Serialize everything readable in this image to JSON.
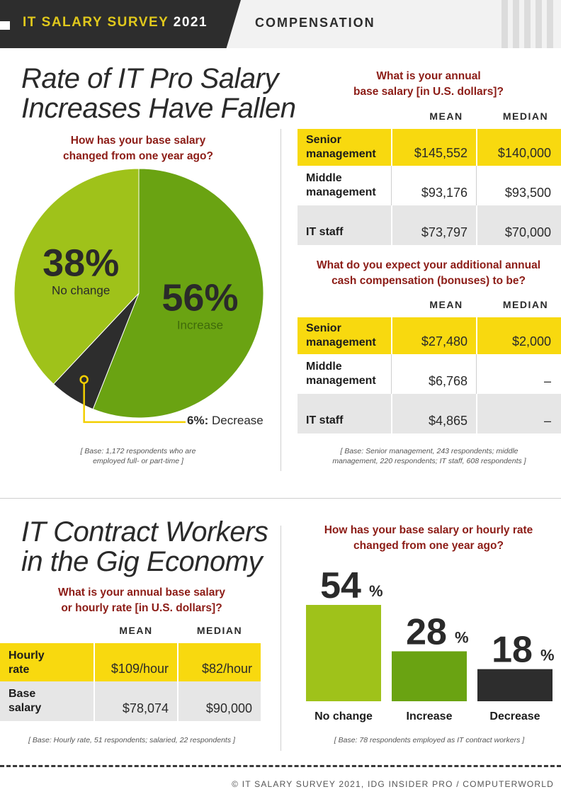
{
  "header": {
    "survey_label": "IT SALARY SURVEY",
    "year": "2021",
    "section": "COMPENSATION"
  },
  "section1": {
    "title_line1": "Rate of IT Pro Salary",
    "title_line2": "Increases Have Fallen",
    "pie": {
      "question_line1": "How has your base salary",
      "question_line2": "changed from one year ago?",
      "note_line1": "[ Base: 1,172 respondents who are",
      "note_line2": "employed full- or part-time ]",
      "decrease_label": "6%:",
      "decrease_text": "Decrease"
    },
    "base_salary": {
      "question_line1": "What is your annual",
      "question_line2": "base salary [in U.S. dollars]?",
      "col_mean": "MEAN",
      "col_median": "MEDIAN",
      "rows": [
        {
          "label_line1": "Senior",
          "label_line2": "management",
          "mean": "$145,552",
          "median": "$140,000"
        },
        {
          "label_line1": "Middle",
          "label_line2": "management",
          "mean": "$93,176",
          "median": "$93,500"
        },
        {
          "label_line1": "IT staff",
          "label_line2": "",
          "mean": "$73,797",
          "median": "$70,000"
        }
      ]
    },
    "bonus": {
      "question_line1": "What do you expect your additional annual",
      "question_line2": "cash compensation (bonuses) to be?",
      "col_mean": "MEAN",
      "col_median": "MEDIAN",
      "rows": [
        {
          "label_line1": "Senior",
          "label_line2": "management",
          "mean": "$27,480",
          "median": "$2,000"
        },
        {
          "label_line1": "Middle",
          "label_line2": "management",
          "mean": "$6,768",
          "median": "–"
        },
        {
          "label_line1": "IT staff",
          "label_line2": "",
          "mean": "$4,865",
          "median": "–"
        }
      ],
      "note_line1": "[ Base: Senior management, 243 respondents; middle",
      "note_line2": "management, 220 respondents; IT staff, 608 respondents ]"
    }
  },
  "section2": {
    "title_line1": "IT Contract Workers",
    "title_line2": "in the Gig Economy",
    "salary": {
      "question_line1": "What is your annual base salary",
      "question_line2": "or hourly rate [in U.S. dollars]?",
      "col_mean": "MEAN",
      "col_median": "MEDIAN",
      "rows": [
        {
          "label_line1": "Hourly",
          "label_line2": "rate",
          "mean": "$109/hour",
          "median": "$82/hour"
        },
        {
          "label_line1": "Base",
          "label_line2": "salary",
          "mean": "$78,074",
          "median": "$90,000"
        }
      ],
      "note": "[ Base: Hourly rate, 51 respondents; salaried, 22 respondents ]"
    },
    "bars": {
      "question_line1": "How has your base salary or hourly rate",
      "question_line2": "changed from one year ago?",
      "note": "[ Base: 78 respondents employed as IT contract workers ]"
    }
  },
  "footer": {
    "credit": "© IT SALARY SURVEY 2021, IDG INSIDER PRO / COMPUTERWORLD"
  },
  "colors": {
    "light_green": "#9fc21a",
    "dark_green": "#6aa312",
    "charcoal": "#2d2d2d",
    "yellow": "#f8d90f",
    "question_red": "#8c1c16",
    "connector_yellow": "#f2cf00"
  },
  "chart_data": [
    {
      "type": "pie",
      "title": "How has your base salary changed from one year ago?",
      "slices": [
        {
          "label": "Increase",
          "value": 56,
          "display": "56%",
          "color": "#6aa312"
        },
        {
          "label": "Decrease",
          "value": 6,
          "display": "6%",
          "color": "#2d2d2d"
        },
        {
          "label": "No change",
          "value": 38,
          "display": "38%",
          "color": "#9fc21a"
        }
      ]
    },
    {
      "type": "bar",
      "title": "How has your base salary or hourly rate changed from one year ago?",
      "categories": [
        "No change",
        "Increase",
        "Decrease"
      ],
      "values": [
        54,
        28,
        18
      ],
      "value_labels": [
        "54",
        "28",
        "18"
      ],
      "unit": "%",
      "colors": [
        "#9fc21a",
        "#6aa312",
        "#2d2d2d"
      ],
      "ylim": [
        0,
        54
      ]
    }
  ]
}
